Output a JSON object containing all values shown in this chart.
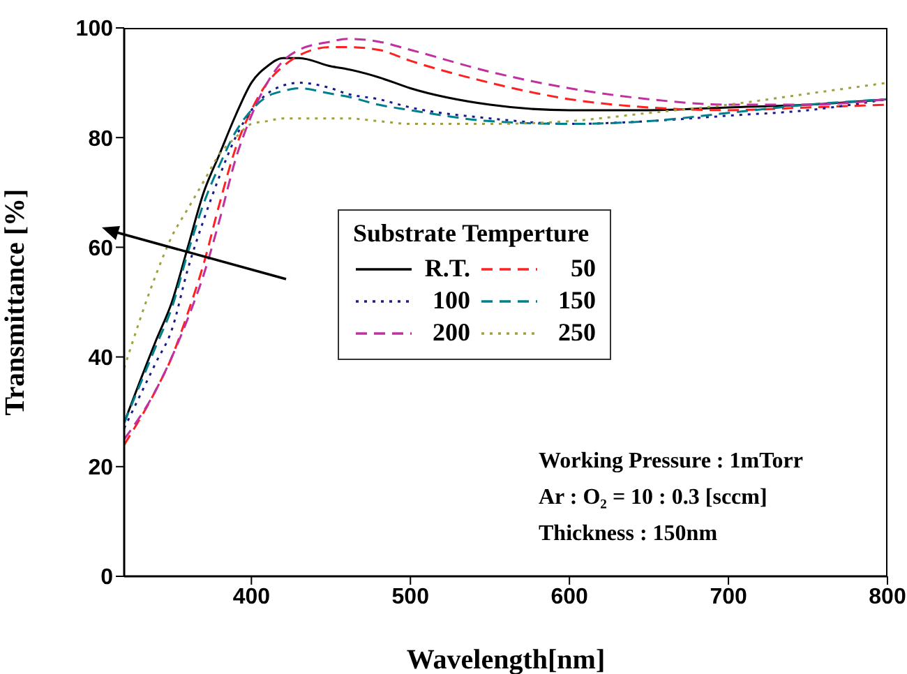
{
  "chart_data": {
    "type": "line",
    "xlabel": "Wavelength[nm]",
    "ylabel": "Transmittance [%]",
    "legend_title": "Substrate Temperture",
    "legend": "center",
    "grid": false,
    "marker": "none",
    "xlim": [
      320,
      800
    ],
    "xticks": [
      400,
      500,
      600,
      700,
      800
    ],
    "ylim": [
      0,
      100
    ],
    "yticks": [
      0,
      20,
      40,
      60,
      80,
      100
    ],
    "x": [
      320,
      340,
      350,
      360,
      370,
      380,
      390,
      400,
      410,
      420,
      430,
      450,
      460,
      480,
      500,
      550,
      600,
      650,
      700,
      750,
      800
    ],
    "series": [
      {
        "name": "R.T.",
        "color": "#000000",
        "line_style": "solid",
        "values": [
          28,
          43,
          50,
          60,
          70,
          77,
          84,
          90,
          93,
          94.5,
          94.5,
          93,
          92.5,
          91,
          89,
          86,
          85,
          85,
          85.5,
          86,
          87
        ]
      },
      {
        "name": "50",
        "color": "#ff2020",
        "line_style": "dashed",
        "values": [
          24,
          34,
          40,
          48,
          57,
          68,
          78,
          85,
          90,
          93,
          95,
          96.5,
          96.5,
          96,
          94,
          90,
          87,
          85.5,
          85,
          85.5,
          86
        ]
      },
      {
        "name": "100",
        "color": "#1a1a8c",
        "line_style": "dotted",
        "values": [
          27,
          39,
          45,
          56,
          65,
          73,
          80,
          85,
          88,
          89.5,
          90,
          89,
          88,
          87,
          85.5,
          83.5,
          82.5,
          83,
          84,
          85,
          87
        ]
      },
      {
        "name": "150",
        "color": "#00808c",
        "line_style": "dashed",
        "values": [
          28,
          42,
          49,
          59,
          68,
          75,
          81,
          85,
          87.5,
          88.5,
          89,
          88,
          87.5,
          86,
          85,
          83,
          82.5,
          83,
          84.5,
          86,
          87
        ]
      },
      {
        "name": "200",
        "color": "#c030a0",
        "line_style": "dashed",
        "values": [
          25,
          34,
          40,
          47,
          55,
          65,
          76,
          84,
          90,
          94,
          96,
          97.5,
          98,
          97.5,
          96,
          92,
          89,
          87,
          86,
          86,
          87
        ]
      },
      {
        "name": "250",
        "color": "#a0a040",
        "line_style": "dotted",
        "values": [
          38,
          55,
          62,
          67,
          72,
          77,
          80,
          82.5,
          83,
          83.5,
          83.5,
          83.5,
          83.5,
          83,
          82.5,
          82.5,
          83,
          84.5,
          86,
          88,
          90
        ]
      }
    ],
    "annotations": [
      "Working Pressure : 1mTorr",
      "Ar : O₂ = 10 : 0.3 [sccm]",
      "Thickness : 150nm"
    ]
  }
}
